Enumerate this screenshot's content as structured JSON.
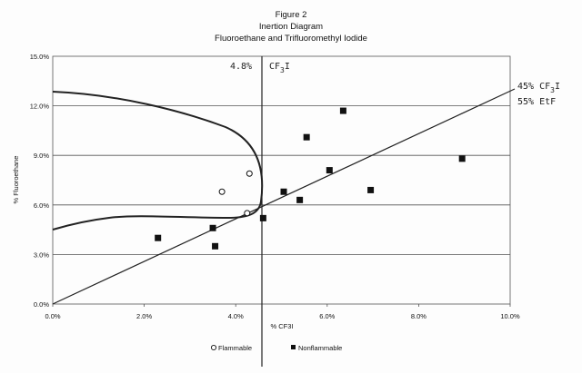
{
  "figure": {
    "title_line1": "Figure 2",
    "title_line2": "Inertion Diagram",
    "title_line3": "Fluoroethane and Trifluoromethyl Iodide"
  },
  "chart_data": {
    "type": "scatter",
    "xlabel": "% CF3I",
    "ylabel": "% Fluoroethane",
    "xlim": [
      0,
      10
    ],
    "ylim": [
      0,
      15
    ],
    "x_ticks": [
      "0.0%",
      "2.0%",
      "4.0%",
      "6.0%",
      "8.0%",
      "10.0%"
    ],
    "y_ticks": [
      "0.0%",
      "3.0%",
      "6.0%",
      "9.0%",
      "12.0%",
      "15.0%"
    ],
    "y_tick_values": [
      0,
      3,
      6,
      9,
      12,
      15
    ],
    "grid": "horizontal",
    "legend_position": "bottom",
    "series": [
      {
        "name": "Flammable",
        "marker": "open-circle",
        "points": [
          [
            3.7,
            6.8
          ],
          [
            4.3,
            7.9
          ],
          [
            4.25,
            5.5
          ]
        ]
      },
      {
        "name": "Nonflammable",
        "marker": "filled-square",
        "points": [
          [
            2.3,
            4.0
          ],
          [
            3.5,
            4.6
          ],
          [
            3.55,
            3.5
          ],
          [
            4.6,
            5.2
          ],
          [
            5.05,
            6.8
          ],
          [
            5.4,
            6.3
          ],
          [
            5.55,
            10.1
          ],
          [
            6.05,
            8.1
          ],
          [
            6.35,
            11.7
          ],
          [
            6.95,
            6.9
          ],
          [
            8.95,
            8.8
          ]
        ]
      }
    ],
    "annotations": {
      "vertical_line_label": "4.8%",
      "vertical_line_formula": "CF",
      "vertical_line_subscript": "3",
      "vertical_line_suffix": "I",
      "stoich_label1_prefix": "45% CF",
      "stoich_label1_sub": "3",
      "stoich_label1_suffix": "I",
      "stoich_label2": "55% EtF"
    }
  }
}
